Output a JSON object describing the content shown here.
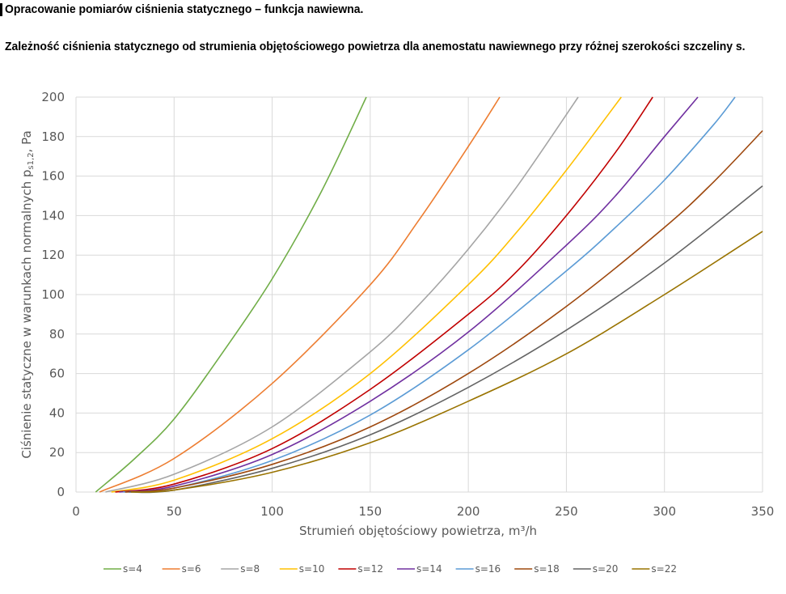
{
  "heading": "Opracowanie pomiarów ciśnienia statycznego – funkcja nawiewna.",
  "subtitle": "Zależność ciśnienia statycznego od strumienia objętościowego powietrza dla anemostatu nawiewnego przy różnej szerokości szczeliny s.",
  "chart_data": {
    "type": "line",
    "xlabel": "Strumień objętościowy powietrza, m³/h",
    "ylabel": "Ciśnienie statyczne w warunkach normalnych p",
    "ylabel_sub": "s1,2",
    "ylabel_suffix": ", Pa",
    "xlim": [
      0,
      350
    ],
    "ylim": [
      0,
      200
    ],
    "xticks": [
      0,
      50,
      100,
      150,
      200,
      250,
      300,
      350
    ],
    "yticks": [
      0,
      20,
      40,
      60,
      80,
      100,
      120,
      140,
      160,
      180,
      200
    ],
    "grid": true,
    "legend_position": "bottom",
    "series": [
      {
        "name": "s=4",
        "color": "#70AD47",
        "x": [
          10,
          30,
          50,
          75,
          100,
          125,
          148
        ],
        "y": [
          0,
          17,
          37,
          71,
          108,
          152,
          200
        ]
      },
      {
        "name": "s=6",
        "color": "#ED7D31",
        "x": [
          12,
          50,
          100,
          150,
          175,
          200,
          216
        ],
        "y": [
          0,
          17,
          55,
          105,
          138,
          175,
          200
        ]
      },
      {
        "name": "s=8",
        "color": "#A5A5A5",
        "x": [
          15,
          50,
          100,
          150,
          175,
          200,
          225,
          256
        ],
        "y": [
          0,
          9,
          33,
          71,
          95,
          123,
          155,
          200
        ]
      },
      {
        "name": "s=10",
        "color": "#FFC000",
        "x": [
          18,
          50,
          100,
          150,
          200,
          225,
          250,
          278
        ],
        "y": [
          0,
          6,
          27,
          60,
          105,
          132,
          163,
          200
        ]
      },
      {
        "name": "s=12",
        "color": "#C00000",
        "x": [
          20,
          50,
          100,
          150,
          200,
          225,
          250,
          275,
          294
        ],
        "y": [
          0,
          4,
          22,
          52,
          90,
          112,
          140,
          172,
          200
        ]
      },
      {
        "name": "s=14",
        "color": "#7030A0",
        "x": [
          22,
          50,
          100,
          150,
          200,
          250,
          275,
          300,
          317
        ],
        "y": [
          0,
          3,
          19,
          46,
          81,
          125,
          150,
          180,
          200
        ]
      },
      {
        "name": "s=16",
        "color": "#5B9BD5",
        "x": [
          24,
          50,
          100,
          150,
          200,
          250,
          275,
          300,
          325,
          336
        ],
        "y": [
          0,
          2,
          16,
          39,
          72,
          112,
          134,
          158,
          186,
          200
        ]
      },
      {
        "name": "s=18",
        "color": "#9E480E",
        "x": [
          25,
          50,
          100,
          150,
          200,
          250,
          300,
          325,
          350
        ],
        "y": [
          0,
          2,
          14,
          33,
          60,
          94,
          134,
          157,
          183
        ]
      },
      {
        "name": "s=20",
        "color": "#636363",
        "x": [
          27,
          50,
          100,
          150,
          200,
          250,
          300,
          350
        ],
        "y": [
          0,
          1,
          12,
          29,
          53,
          82,
          116,
          155
        ]
      },
      {
        "name": "s=22",
        "color": "#997300",
        "x": [
          28,
          50,
          100,
          150,
          200,
          250,
          300,
          350
        ],
        "y": [
          0,
          1,
          10,
          25,
          46,
          70,
          100,
          132
        ]
      }
    ]
  }
}
